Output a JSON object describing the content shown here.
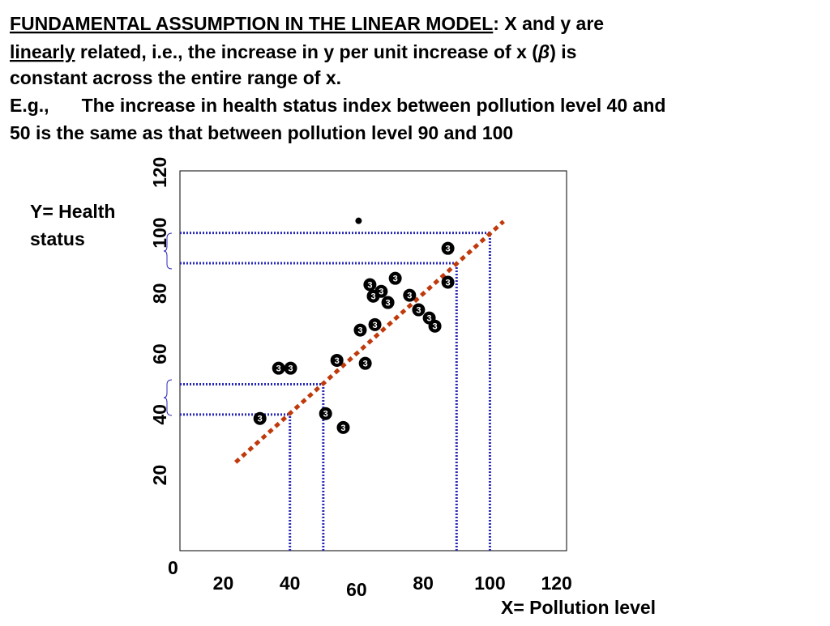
{
  "slide": {
    "intro": [
      [
        {
          "t": "FUNDAMENTAL ASSUMPTION IN THE LINEAR MODEL",
          "u": true
        },
        {
          "t": ": X and y are"
        }
      ],
      [
        {
          "t": "linearly",
          "u": true
        },
        {
          "t": " related, i.e., the increase in y per unit increase of x ("
        },
        {
          "t": "β"
        },
        {
          "t": ") is"
        }
      ],
      [
        {
          "t": "constant across the entire range of x."
        }
      ],
      [
        {
          "t": "E.g.,"
        },
        {
          "t": "The increase in health status index between pollution level 40 and"
        }
      ],
      [
        {
          "t": "50 is the same as that between pollution level 90 and 100"
        }
      ]
    ],
    "y_label": [
      "Y= Health",
      "status"
    ],
    "x_label": "X= Pollution level",
    "origin_label": "0"
  },
  "chart_data": {
    "type": "scatter",
    "marker": "3",
    "xlim": [
      7,
      123
    ],
    "ylim": [
      -5,
      120.5
    ],
    "xticks": [
      20,
      40,
      60,
      80,
      100,
      120
    ],
    "yticks": [
      20,
      40,
      60,
      80,
      100,
      120
    ],
    "series": [
      {
        "color": "#000000",
        "x": [
          31.0,
          36.6,
          40.2,
          50.7,
          56.0,
          54.1,
          62.6,
          61.1,
          65.5,
          64.0,
          65.0,
          67.4,
          69.4,
          71.6,
          75.9,
          78.6,
          81.8,
          83.5,
          87.4,
          87.4
        ],
        "values": [
          38.7,
          55.3,
          55.3,
          40.3,
          35.7,
          57.9,
          56.9,
          67.9,
          69.7,
          82.9,
          79.1,
          80.7,
          77.0,
          85.0,
          79.4,
          74.6,
          71.9,
          69.2,
          83.7,
          94.9
        ]
      },
      {
        "color": "#000000",
        "x": [
          60.6
        ],
        "values": [
          104.0
        ]
      }
    ],
    "fit": {
      "color": "#c0390b",
      "x": [
        23.7,
        104.1
      ],
      "values": [
        24.2,
        103.8
      ]
    },
    "guides": {
      "color": "#2a2ab8",
      "x": [
        40,
        50,
        90,
        100
      ],
      "y": [
        40,
        50,
        90,
        100
      ]
    }
  }
}
